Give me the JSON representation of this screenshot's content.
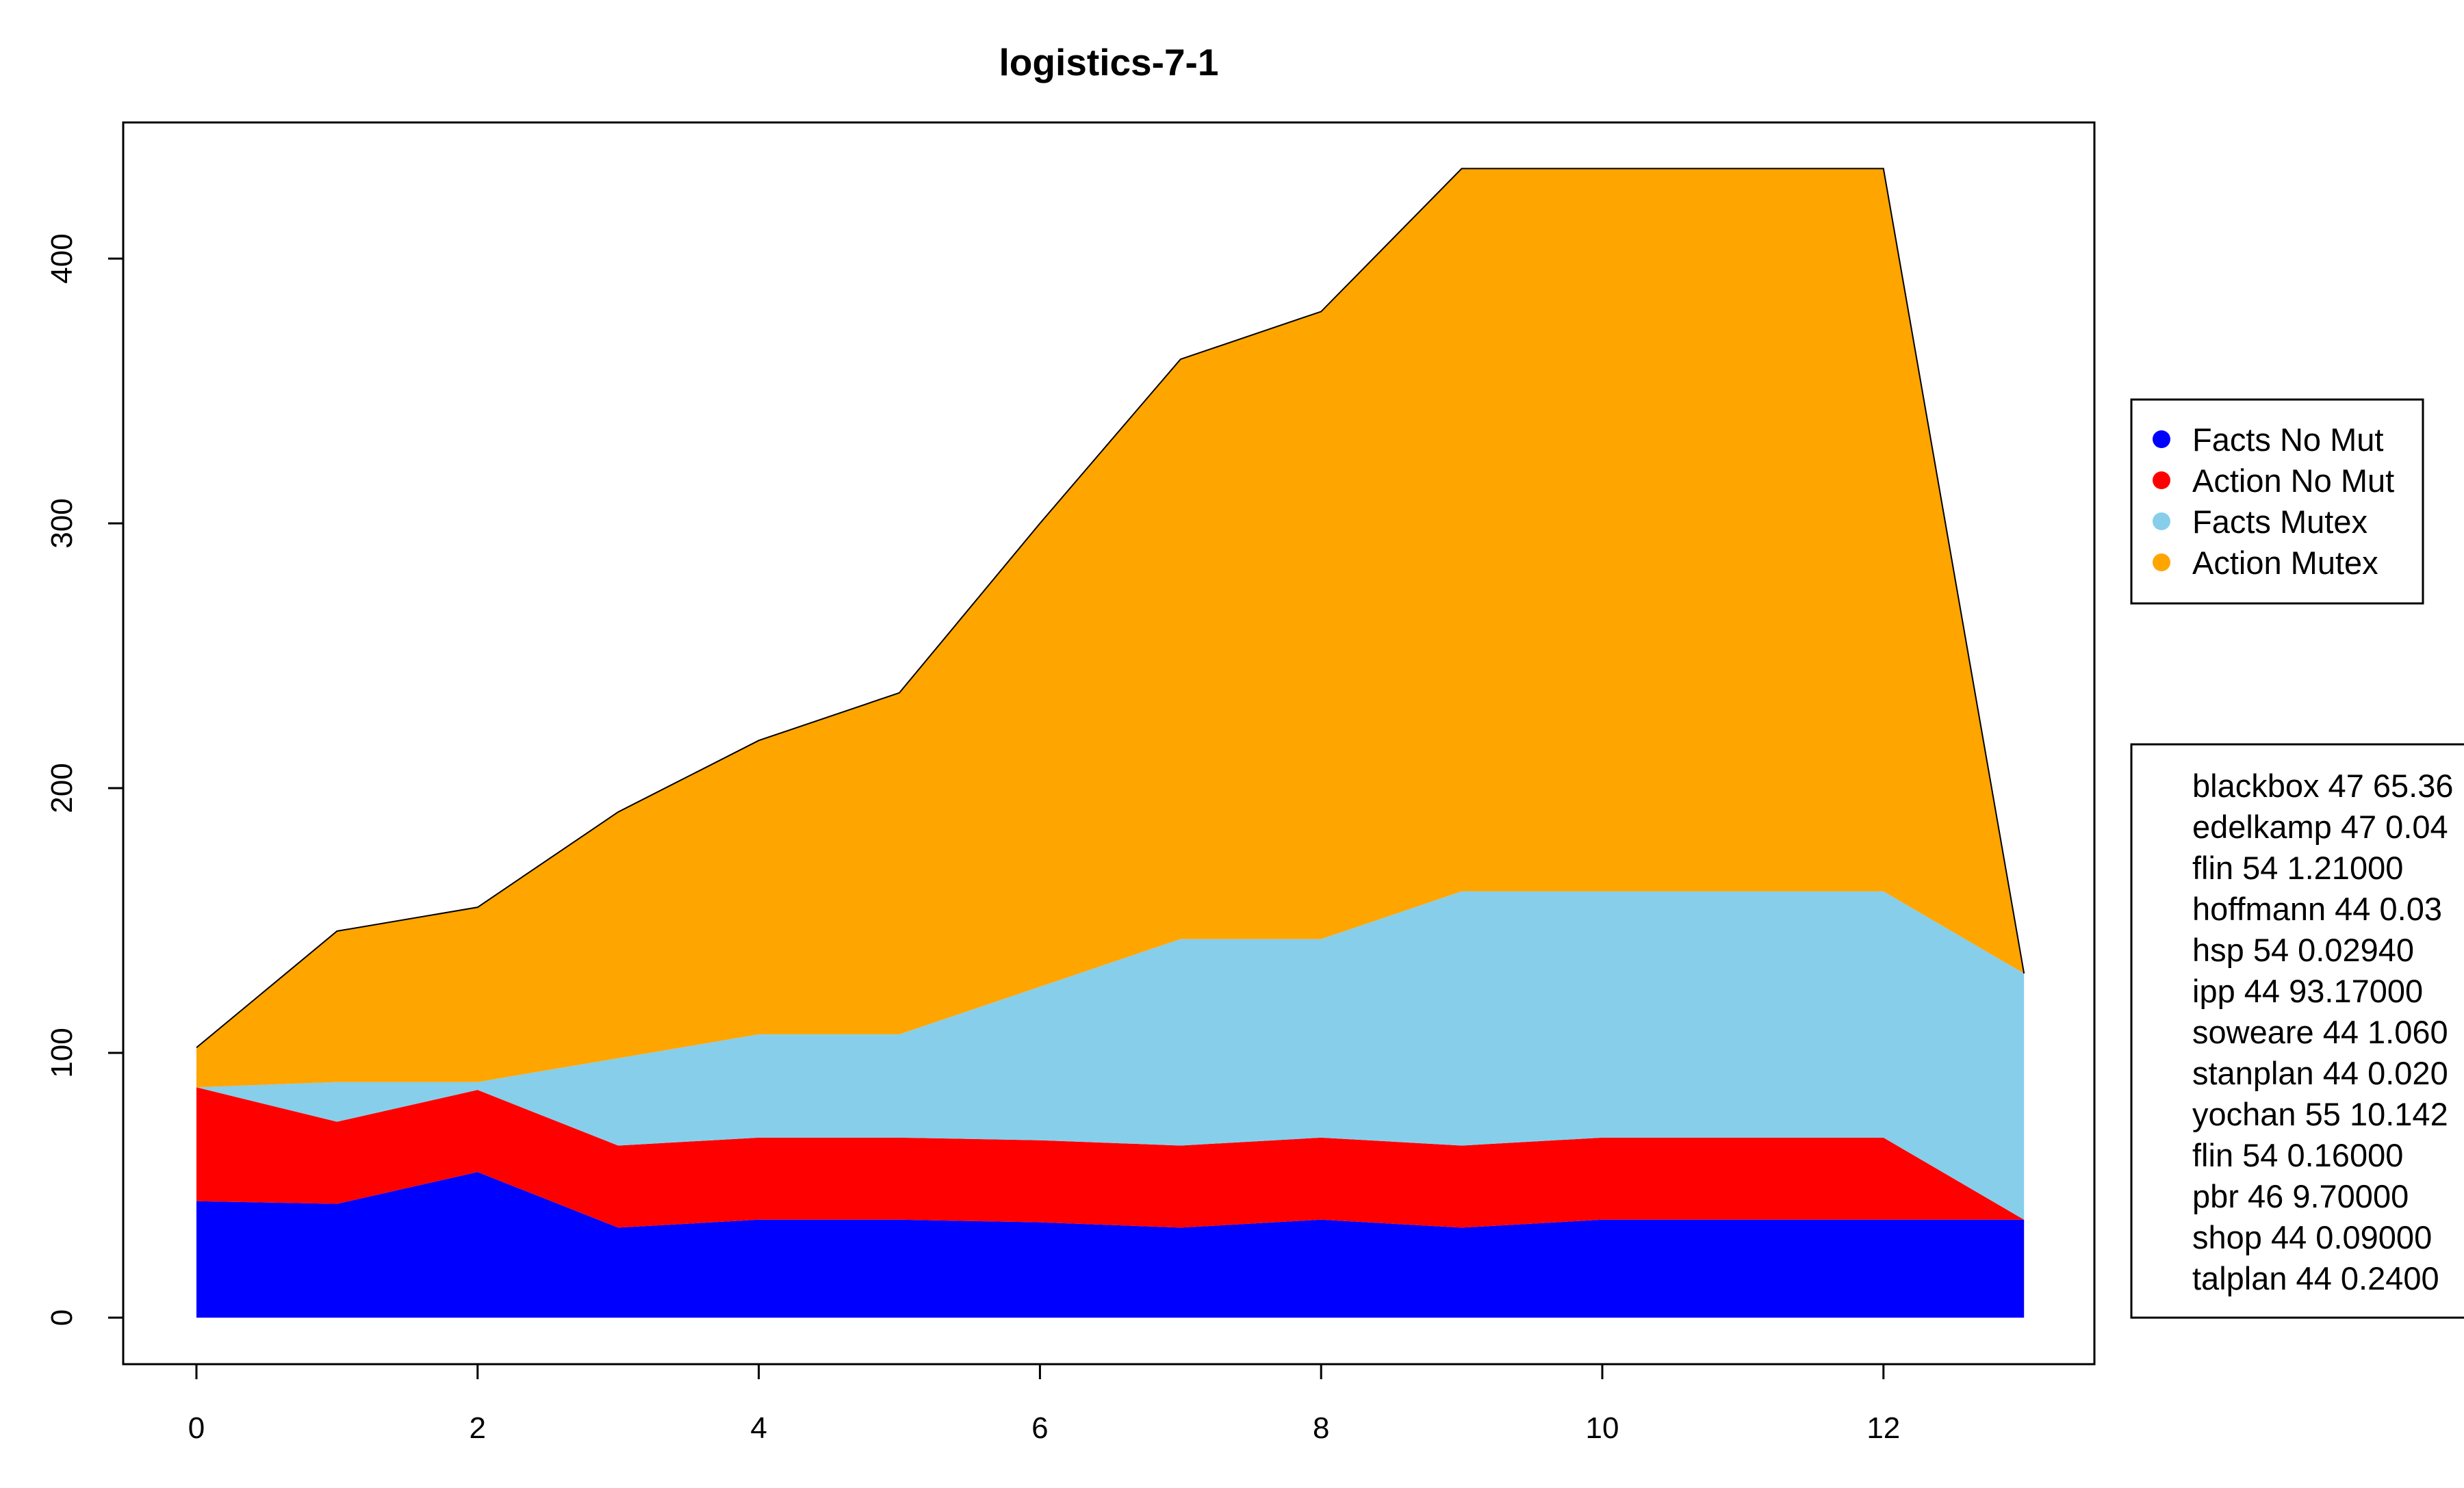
{
  "chart_data": {
    "type": "area",
    "stacked": true,
    "title": "logistics-7-1",
    "xlabel": "",
    "ylabel": "",
    "xlim": [
      0,
      13
    ],
    "ylim": [
      0,
      450
    ],
    "x": [
      0,
      1,
      2,
      3,
      4,
      5,
      6,
      7,
      8,
      9,
      10,
      11,
      12,
      13
    ],
    "x_ticks": [
      "0",
      "2",
      "4",
      "6",
      "8",
      "10",
      "12"
    ],
    "y_ticks": [
      "0",
      "100",
      "200",
      "300",
      "400"
    ],
    "grid": false,
    "legend_placement": "right",
    "series": [
      {
        "name": "Facts No Mut",
        "color": "#0000ff",
        "values": [
          44,
          43,
          55,
          34,
          37,
          37,
          36,
          34,
          37,
          34,
          37,
          37,
          37,
          37
        ]
      },
      {
        "name": "Action No Mut",
        "color": "#ff0000",
        "values": [
          43,
          31,
          31,
          31,
          31,
          31,
          31,
          31,
          31,
          31,
          31,
          31,
          31,
          0
        ]
      },
      {
        "name": "Facts Mutex",
        "color": "#87ceeb",
        "values": [
          0,
          15,
          3,
          33,
          39,
          39,
          58,
          78,
          75,
          96,
          93,
          93,
          93,
          93
        ]
      },
      {
        "name": "Action Mutex",
        "color": "#ffa500",
        "values": [
          15,
          57,
          66,
          93,
          111,
          129,
          175,
          219,
          237,
          273,
          273,
          273,
          273,
          0
        ]
      }
    ],
    "annotations": [
      "blackbox 47 65.36",
      "edelkamp 47  0.04",
      "flin 54  1.21000",
      "hoffmann 44  0.03",
      "hsp 54  0.02940",
      "ipp 44 93.17000",
      "soweare 44  1.060",
      "stanplan 44  0.020",
      "yochan 55 10.142",
      "flin 54  0.16000",
      "pbr 46  9.70000",
      "shop 44  0.09000",
      "talplan 44  0.2400"
    ]
  }
}
